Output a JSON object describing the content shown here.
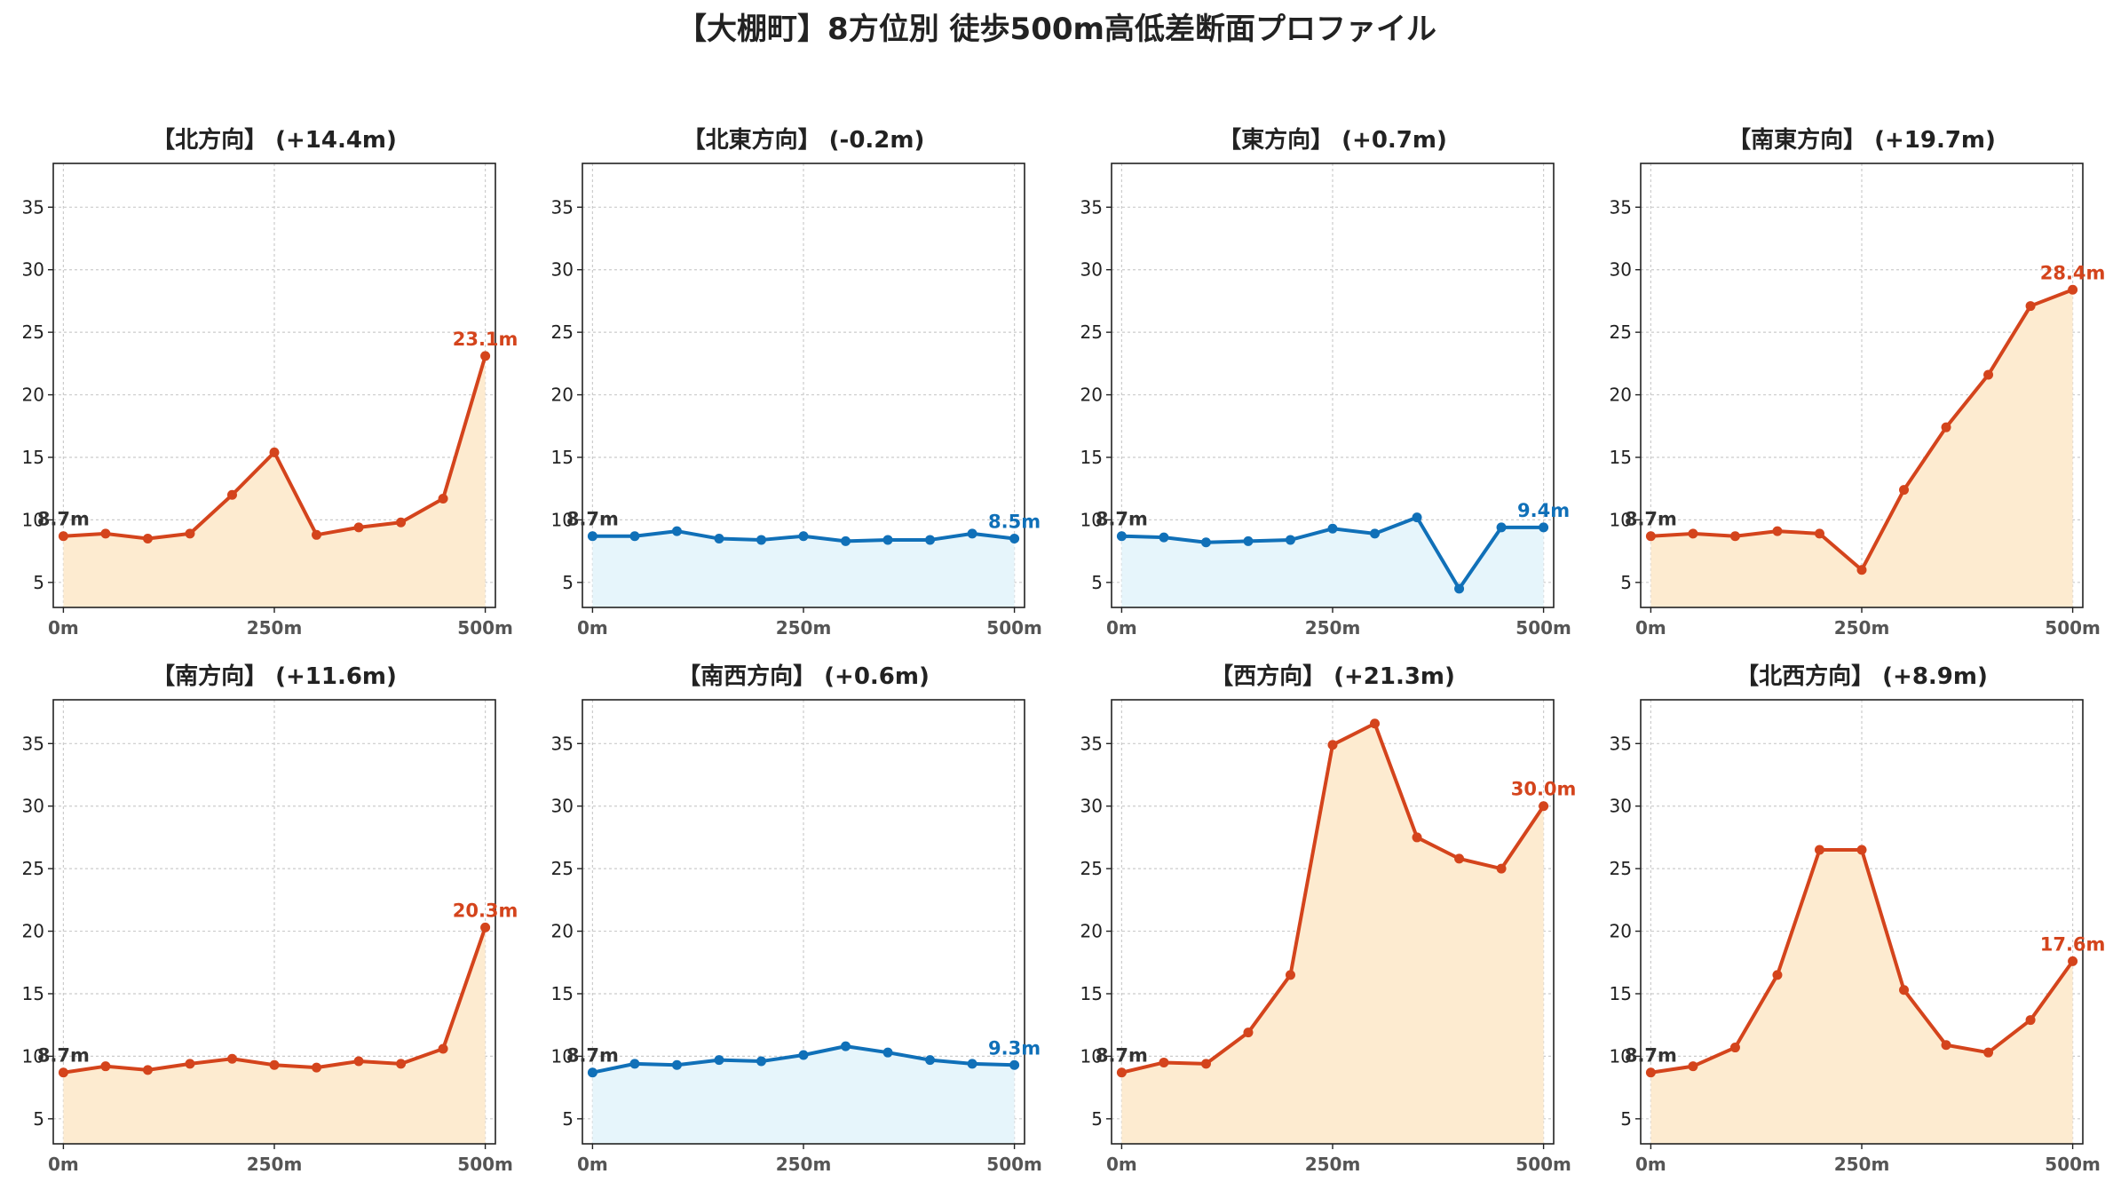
{
  "title": "【大棚町】8方位別 徒歩500m高低差断面プロファイル",
  "colors": {
    "up_line": "#d4441c",
    "up_fill": "#fdebd0",
    "flat_line": "#1070b8",
    "flat_fill": "#e6f5fb",
    "start_label": "#333333"
  },
  "chart_data": [
    {
      "type": "area",
      "title": "【北方向】 (+14.4m)",
      "x": [
        0,
        50,
        100,
        150,
        200,
        250,
        300,
        350,
        400,
        450,
        500
      ],
      "y": [
        8.7,
        8.9,
        8.5,
        8.9,
        12.0,
        15.4,
        8.8,
        9.4,
        9.8,
        11.7,
        23.1
      ],
      "start_label": "8.7m",
      "end_label": "23.1m",
      "trend": "up",
      "ylim": [
        3,
        38.5
      ],
      "xlim": [
        -12,
        512
      ],
      "yticks": [
        5,
        10,
        15,
        20,
        25,
        30,
        35
      ],
      "xticks": [
        0,
        250,
        500
      ],
      "xtick_labels": [
        "0m",
        "250m",
        "500m"
      ],
      "grid": true
    },
    {
      "type": "area",
      "title": "【北東方向】 (-0.2m)",
      "x": [
        0,
        50,
        100,
        150,
        200,
        250,
        300,
        350,
        400,
        450,
        500
      ],
      "y": [
        8.7,
        8.7,
        9.1,
        8.5,
        8.4,
        8.7,
        8.3,
        8.4,
        8.4,
        8.9,
        8.5
      ],
      "start_label": "8.7m",
      "end_label": "8.5m",
      "trend": "flat",
      "ylim": [
        3,
        38.5
      ],
      "xlim": [
        -12,
        512
      ],
      "yticks": [
        5,
        10,
        15,
        20,
        25,
        30,
        35
      ],
      "xticks": [
        0,
        250,
        500
      ],
      "xtick_labels": [
        "0m",
        "250m",
        "500m"
      ],
      "grid": true
    },
    {
      "type": "area",
      "title": "【東方向】 (+0.7m)",
      "x": [
        0,
        50,
        100,
        150,
        200,
        250,
        300,
        350,
        400,
        450,
        500
      ],
      "y": [
        8.7,
        8.6,
        8.2,
        8.3,
        8.4,
        9.3,
        8.9,
        10.2,
        4.5,
        9.4,
        9.4
      ],
      "start_label": "8.7m",
      "end_label": "9.4m",
      "trend": "flat",
      "ylim": [
        3,
        38.5
      ],
      "xlim": [
        -12,
        512
      ],
      "yticks": [
        5,
        10,
        15,
        20,
        25,
        30,
        35
      ],
      "xticks": [
        0,
        250,
        500
      ],
      "xtick_labels": [
        "0m",
        "250m",
        "500m"
      ],
      "grid": true
    },
    {
      "type": "area",
      "title": "【南東方向】 (+19.7m)",
      "x": [
        0,
        50,
        100,
        150,
        200,
        250,
        300,
        350,
        400,
        450,
        500
      ],
      "y": [
        8.7,
        8.9,
        8.7,
        9.1,
        8.9,
        6.0,
        12.4,
        17.4,
        21.6,
        27.1,
        28.4
      ],
      "start_label": "8.7m",
      "end_label": "28.4m",
      "trend": "up",
      "ylim": [
        3,
        38.5
      ],
      "xlim": [
        -12,
        512
      ],
      "yticks": [
        5,
        10,
        15,
        20,
        25,
        30,
        35
      ],
      "xticks": [
        0,
        250,
        500
      ],
      "xtick_labels": [
        "0m",
        "250m",
        "500m"
      ],
      "grid": true
    },
    {
      "type": "area",
      "title": "【南方向】 (+11.6m)",
      "x": [
        0,
        50,
        100,
        150,
        200,
        250,
        300,
        350,
        400,
        450,
        500
      ],
      "y": [
        8.7,
        9.2,
        8.9,
        9.4,
        9.8,
        9.3,
        9.1,
        9.6,
        9.4,
        10.6,
        20.3
      ],
      "start_label": "8.7m",
      "end_label": "20.3m",
      "trend": "up",
      "ylim": [
        3,
        38.5
      ],
      "xlim": [
        -12,
        512
      ],
      "yticks": [
        5,
        10,
        15,
        20,
        25,
        30,
        35
      ],
      "xticks": [
        0,
        250,
        500
      ],
      "xtick_labels": [
        "0m",
        "250m",
        "500m"
      ],
      "grid": true
    },
    {
      "type": "area",
      "title": "【南西方向】 (+0.6m)",
      "x": [
        0,
        50,
        100,
        150,
        200,
        250,
        300,
        350,
        400,
        450,
        500
      ],
      "y": [
        8.7,
        9.4,
        9.3,
        9.7,
        9.6,
        10.1,
        10.8,
        10.3,
        9.7,
        9.4,
        9.3
      ],
      "start_label": "8.7m",
      "end_label": "9.3m",
      "trend": "flat",
      "ylim": [
        3,
        38.5
      ],
      "xlim": [
        -12,
        512
      ],
      "yticks": [
        5,
        10,
        15,
        20,
        25,
        30,
        35
      ],
      "xticks": [
        0,
        250,
        500
      ],
      "xtick_labels": [
        "0m",
        "250m",
        "500m"
      ],
      "grid": true
    },
    {
      "type": "area",
      "title": "【西方向】 (+21.3m)",
      "x": [
        0,
        50,
        100,
        150,
        200,
        250,
        300,
        350,
        400,
        450,
        500
      ],
      "y": [
        8.7,
        9.5,
        9.4,
        11.9,
        16.5,
        34.9,
        36.6,
        27.5,
        25.8,
        25.0,
        30.0
      ],
      "start_label": "8.7m",
      "end_label": "30.0m",
      "trend": "up",
      "ylim": [
        3,
        38.5
      ],
      "xlim": [
        -12,
        512
      ],
      "yticks": [
        5,
        10,
        15,
        20,
        25,
        30,
        35
      ],
      "xticks": [
        0,
        250,
        500
      ],
      "xtick_labels": [
        "0m",
        "250m",
        "500m"
      ],
      "grid": true
    },
    {
      "type": "area",
      "title": "【北西方向】 (+8.9m)",
      "x": [
        0,
        50,
        100,
        150,
        200,
        250,
        300,
        350,
        400,
        450,
        500
      ],
      "y": [
        8.7,
        9.2,
        10.7,
        16.5,
        26.5,
        26.5,
        15.3,
        10.9,
        10.3,
        12.9,
        17.6
      ],
      "start_label": "8.7m",
      "end_label": "17.6m",
      "trend": "up",
      "ylim": [
        3,
        38.5
      ],
      "xlim": [
        -12,
        512
      ],
      "yticks": [
        5,
        10,
        15,
        20,
        25,
        30,
        35
      ],
      "xticks": [
        0,
        250,
        500
      ],
      "xtick_labels": [
        "0m",
        "250m",
        "500m"
      ],
      "grid": true
    }
  ]
}
